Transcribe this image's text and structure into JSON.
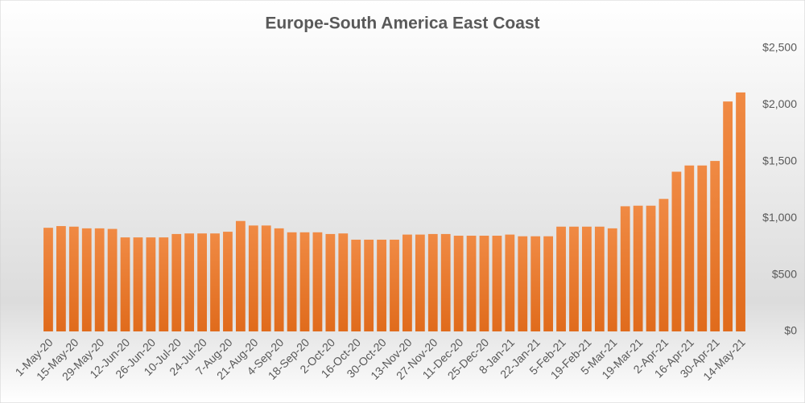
{
  "chart_data": {
    "type": "bar",
    "title": "Europe-South America East Coast",
    "categories": [
      "1-May-20",
      null,
      "15-May-20",
      null,
      "29-May-20",
      null,
      "12-Jun-20",
      null,
      "26-Jun-20",
      null,
      "10-Jul-20",
      null,
      "24-Jul-20",
      null,
      "7-Aug-20",
      null,
      "21-Aug-20",
      null,
      "4-Sep-20",
      null,
      "18-Sep-20",
      null,
      "2-Oct-20",
      null,
      "16-Oct-20",
      null,
      "30-Oct-20",
      null,
      "13-Nov-20",
      null,
      "27-Nov-20",
      null,
      "11-Dec-20",
      null,
      "25-Dec-20",
      null,
      "8-Jan-21",
      null,
      "22-Jan-21",
      null,
      "5-Feb-21",
      null,
      "19-Feb-21",
      null,
      "5-Mar-21",
      null,
      "19-Mar-21",
      null,
      "2-Apr-21",
      null,
      "16-Apr-21",
      null,
      "30-Apr-21",
      null,
      "14-May-21"
    ],
    "values": [
      915,
      930,
      925,
      910,
      910,
      905,
      830,
      830,
      830,
      830,
      860,
      865,
      865,
      865,
      880,
      975,
      935,
      935,
      910,
      875,
      875,
      875,
      860,
      865,
      810,
      810,
      810,
      810,
      855,
      855,
      860,
      860,
      845,
      845,
      845,
      845,
      855,
      840,
      840,
      840,
      925,
      925,
      925,
      925,
      910,
      1105,
      1110,
      1110,
      1170,
      1410,
      1465,
      1465,
      1505,
      2030,
      2110
    ],
    "color": "#ed7d31",
    "ylim": [
      0,
      2500
    ],
    "yticks": [
      {
        "value": 0,
        "label": "$0"
      },
      {
        "value": 500,
        "label": "$500"
      },
      {
        "value": 1000,
        "label": "$1,000"
      },
      {
        "value": 1500,
        "label": "$1,500"
      },
      {
        "value": 2000,
        "label": "$2,000"
      },
      {
        "value": 2500,
        "label": "$2,500"
      }
    ],
    "grid": false
  }
}
